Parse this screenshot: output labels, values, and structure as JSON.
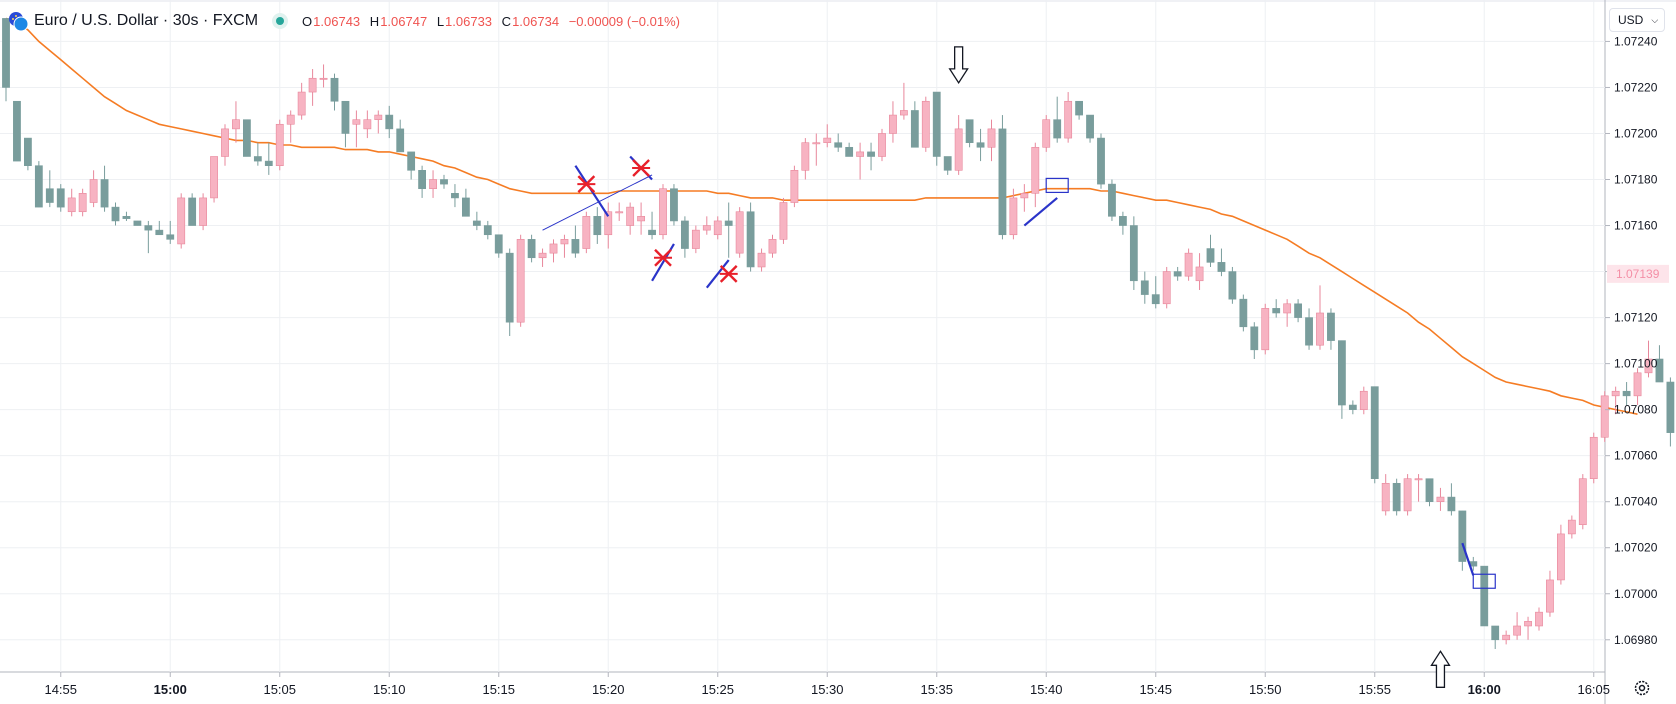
{
  "header": {
    "symbol_title": "Euro / U.S. Dollar · 30s · FXCM",
    "open_label": "O",
    "open": "1.06743",
    "high_label": "H",
    "high": "1.06747",
    "low_label": "L",
    "low": "1.06733",
    "close_label": "C",
    "close": "1.06734",
    "change": "−0.00009 (−0.01%)"
  },
  "currency_button": {
    "label": "USD"
  },
  "icons": {
    "flag": "eur-usd-flag-icon",
    "status": "market-open-dot-icon",
    "settings": "settings-gear-icon",
    "chevron": "chevron-down-icon"
  },
  "colors": {
    "up": "#f7b3c2",
    "up_border": "#e8879b",
    "down": "#799d9c",
    "ma": "#f57c24",
    "drawing": "#2a34c9",
    "marker": "#e8202a",
    "axis_text": "#131722",
    "grid": "#eef0f3"
  },
  "chart_data": {
    "type": "candlestick",
    "interval": "30s",
    "ylim": [
      1.06966,
      1.07258
    ],
    "y_ticks": [
      "1.07240",
      "1.07220",
      "1.07200",
      "1.07180",
      "1.07160",
      "1.07140",
      "1.07120",
      "1.07100",
      "1.07080",
      "1.07060",
      "1.07040",
      "1.07020",
      "1.07000",
      "1.06980"
    ],
    "y_tick_values": [
      1.0724,
      1.0722,
      1.072,
      1.0718,
      1.0716,
      1.0714,
      1.0712,
      1.071,
      1.0708,
      1.0706,
      1.0704,
      1.0702,
      1.07,
      1.0698
    ],
    "current_price_label": "1.07139",
    "current_price": 1.07139,
    "x_ticks": [
      "14:55",
      "15:00",
      "15:05",
      "15:10",
      "15:15",
      "15:20",
      "15:25",
      "15:30",
      "15:35",
      "15:40",
      "15:45",
      "15:50",
      "15:55",
      "16:00",
      "16:05"
    ],
    "x_tick_index": [
      5,
      15,
      25,
      35,
      45,
      55,
      65,
      75,
      85,
      95,
      105,
      115,
      125,
      135,
      145
    ],
    "x_tick_bold": [
      false,
      true,
      false,
      false,
      false,
      false,
      false,
      false,
      false,
      false,
      false,
      false,
      false,
      true,
      false
    ],
    "candles": [
      [
        1.0725,
        1.0725,
        1.07214,
        1.0722
      ],
      [
        1.07214,
        1.07214,
        1.07188,
        1.07188
      ],
      [
        1.07198,
        1.07198,
        1.07184,
        1.07186
      ],
      [
        1.07186,
        1.07188,
        1.07168,
        1.07168
      ],
      [
        1.07176,
        1.07184,
        1.07168,
        1.0717
      ],
      [
        1.07176,
        1.07178,
        1.07166,
        1.07168
      ],
      [
        1.07166,
        1.07176,
        1.07164,
        1.07172
      ],
      [
        1.07166,
        1.07176,
        1.07164,
        1.07174
      ],
      [
        1.0717,
        1.07184,
        1.07168,
        1.0718
      ],
      [
        1.0718,
        1.07186,
        1.07166,
        1.07168
      ],
      [
        1.07168,
        1.0717,
        1.0716,
        1.07162
      ],
      [
        1.07164,
        1.07166,
        1.07162,
        1.07163
      ],
      [
        1.07162,
        1.07162,
        1.0716,
        1.0716
      ],
      [
        1.0716,
        1.07162,
        1.07148,
        1.07158
      ],
      [
        1.07158,
        1.07162,
        1.07156,
        1.07156
      ],
      [
        1.07156,
        1.07162,
        1.07152,
        1.07154
      ],
      [
        1.07152,
        1.07174,
        1.0715,
        1.07172
      ],
      [
        1.07172,
        1.07174,
        1.0716,
        1.0716
      ],
      [
        1.0716,
        1.07174,
        1.07158,
        1.07172
      ],
      [
        1.07172,
        1.0719,
        1.0717,
        1.0719
      ],
      [
        1.0719,
        1.07204,
        1.07186,
        1.07202
      ],
      [
        1.07202,
        1.07214,
        1.07196,
        1.07206
      ],
      [
        1.07206,
        1.07206,
        1.0719,
        1.0719
      ],
      [
        1.0719,
        1.07196,
        1.07186,
        1.07188
      ],
      [
        1.07188,
        1.07196,
        1.07182,
        1.07186
      ],
      [
        1.07186,
        1.07206,
        1.07184,
        1.07204
      ],
      [
        1.07204,
        1.0721,
        1.07196,
        1.07208
      ],
      [
        1.07208,
        1.07222,
        1.07206,
        1.07218
      ],
      [
        1.07218,
        1.07228,
        1.07212,
        1.07224
      ],
      [
        1.07224,
        1.0723,
        1.0722,
        1.07224
      ],
      [
        1.07224,
        1.07226,
        1.0721,
        1.07214
      ],
      [
        1.07214,
        1.07214,
        1.07194,
        1.072
      ],
      [
        1.07204,
        1.0721,
        1.07194,
        1.07206
      ],
      [
        1.07202,
        1.0721,
        1.07198,
        1.07206
      ],
      [
        1.07206,
        1.0721,
        1.072,
        1.07208
      ],
      [
        1.07208,
        1.07212,
        1.07198,
        1.07202
      ],
      [
        1.07202,
        1.07206,
        1.07192,
        1.07192
      ],
      [
        1.07192,
        1.07192,
        1.0718,
        1.07184
      ],
      [
        1.07184,
        1.07186,
        1.07172,
        1.07176
      ],
      [
        1.07176,
        1.07184,
        1.07172,
        1.0718
      ],
      [
        1.0718,
        1.07182,
        1.07176,
        1.07178
      ],
      [
        1.07174,
        1.07178,
        1.07168,
        1.07172
      ],
      [
        1.07172,
        1.07176,
        1.07164,
        1.07164
      ],
      [
        1.07162,
        1.07166,
        1.07158,
        1.0716
      ],
      [
        1.0716,
        1.07162,
        1.07154,
        1.07156
      ],
      [
        1.07156,
        1.07156,
        1.07146,
        1.07148
      ],
      [
        1.07148,
        1.0715,
        1.07112,
        1.07118
      ],
      [
        1.07118,
        1.07156,
        1.07116,
        1.07154
      ],
      [
        1.07154,
        1.07156,
        1.07144,
        1.07146
      ],
      [
        1.07146,
        1.0715,
        1.07142,
        1.07148
      ],
      [
        1.07148,
        1.07154,
        1.07144,
        1.07152
      ],
      [
        1.07152,
        1.07156,
        1.07146,
        1.07154
      ],
      [
        1.07154,
        1.0716,
        1.07146,
        1.07148
      ],
      [
        1.0715,
        1.07166,
        1.07148,
        1.07164
      ],
      [
        1.07164,
        1.07168,
        1.07152,
        1.07156
      ],
      [
        1.07156,
        1.0717,
        1.0715,
        1.07166
      ],
      [
        1.07166,
        1.0717,
        1.07162,
        1.07166
      ],
      [
        1.0716,
        1.0717,
        1.07156,
        1.07168
      ],
      [
        1.07162,
        1.0717,
        1.07156,
        1.07164
      ],
      [
        1.07158,
        1.07166,
        1.07154,
        1.07156
      ],
      [
        1.07156,
        1.07178,
        1.07154,
        1.07176
      ],
      [
        1.07176,
        1.07178,
        1.0716,
        1.07162
      ],
      [
        1.07162,
        1.07164,
        1.07146,
        1.0715
      ],
      [
        1.0715,
        1.0716,
        1.07148,
        1.07158
      ],
      [
        1.07158,
        1.07164,
        1.07156,
        1.0716
      ],
      [
        1.07156,
        1.07164,
        1.07154,
        1.07162
      ],
      [
        1.07162,
        1.0717,
        1.07146,
        1.0716
      ],
      [
        1.07148,
        1.07168,
        1.07146,
        1.07166
      ],
      [
        1.07166,
        1.0717,
        1.0714,
        1.07142
      ],
      [
        1.07142,
        1.0715,
        1.0714,
        1.07148
      ],
      [
        1.07148,
        1.07156,
        1.07146,
        1.07154
      ],
      [
        1.07154,
        1.07172,
        1.07152,
        1.0717
      ],
      [
        1.0717,
        1.07186,
        1.07168,
        1.07184
      ],
      [
        1.07184,
        1.07198,
        1.0718,
        1.07196
      ],
      [
        1.07196,
        1.072,
        1.07186,
        1.07196
      ],
      [
        1.07196,
        1.07204,
        1.07194,
        1.07198
      ],
      [
        1.07196,
        1.072,
        1.07192,
        1.07194
      ],
      [
        1.07194,
        1.07196,
        1.0719,
        1.0719
      ],
      [
        1.0719,
        1.07196,
        1.0718,
        1.07192
      ],
      [
        1.07192,
        1.07196,
        1.07184,
        1.0719
      ],
      [
        1.0719,
        1.07202,
        1.07188,
        1.072
      ],
      [
        1.072,
        1.07214,
        1.07196,
        1.07208
      ],
      [
        1.07208,
        1.07222,
        1.07206,
        1.0721
      ],
      [
        1.0721,
        1.07214,
        1.07194,
        1.07194
      ],
      [
        1.07194,
        1.07216,
        1.07192,
        1.07214
      ],
      [
        1.07218,
        1.07218,
        1.07186,
        1.0719
      ],
      [
        1.0719,
        1.0719,
        1.07182,
        1.07184
      ],
      [
        1.07184,
        1.07208,
        1.07182,
        1.07202
      ],
      [
        1.07206,
        1.07206,
        1.07194,
        1.07196
      ],
      [
        1.07196,
        1.07202,
        1.07188,
        1.07194
      ],
      [
        1.07194,
        1.07206,
        1.07188,
        1.07202
      ],
      [
        1.07202,
        1.07208,
        1.07154,
        1.07156
      ],
      [
        1.07156,
        1.07176,
        1.07154,
        1.07172
      ],
      [
        1.07172,
        1.07178,
        1.07166,
        1.07174
      ],
      [
        1.07174,
        1.07196,
        1.07168,
        1.07194
      ],
      [
        1.07194,
        1.07208,
        1.07192,
        1.07206
      ],
      [
        1.07206,
        1.07216,
        1.07196,
        1.07198
      ],
      [
        1.07198,
        1.07218,
        1.07196,
        1.07214
      ],
      [
        1.07214,
        1.07214,
        1.07206,
        1.07208
      ],
      [
        1.07208,
        1.07208,
        1.07196,
        1.07198
      ],
      [
        1.07198,
        1.072,
        1.07176,
        1.07178
      ],
      [
        1.07178,
        1.0718,
        1.07162,
        1.07164
      ],
      [
        1.07164,
        1.07166,
        1.07156,
        1.0716
      ],
      [
        1.0716,
        1.07164,
        1.07132,
        1.07136
      ],
      [
        1.07136,
        1.0714,
        1.07126,
        1.0713
      ],
      [
        1.0713,
        1.07138,
        1.07124,
        1.07126
      ],
      [
        1.07126,
        1.07142,
        1.07124,
        1.0714
      ],
      [
        1.0714,
        1.07142,
        1.07136,
        1.07138
      ],
      [
        1.07138,
        1.0715,
        1.07136,
        1.07148
      ],
      [
        1.07136,
        1.07148,
        1.07132,
        1.07142
      ],
      [
        1.0715,
        1.07156,
        1.07142,
        1.07144
      ],
      [
        1.07144,
        1.0715,
        1.07138,
        1.0714
      ],
      [
        1.0714,
        1.07142,
        1.07126,
        1.07128
      ],
      [
        1.07128,
        1.0713,
        1.07114,
        1.07116
      ],
      [
        1.07116,
        1.07118,
        1.07102,
        1.07106
      ],
      [
        1.07106,
        1.07126,
        1.07104,
        1.07124
      ],
      [
        1.07124,
        1.07128,
        1.0712,
        1.07122
      ],
      [
        1.07122,
        1.07128,
        1.07116,
        1.07126
      ],
      [
        1.07126,
        1.07128,
        1.07118,
        1.0712
      ],
      [
        1.0712,
        1.07124,
        1.07106,
        1.07108
      ],
      [
        1.07108,
        1.07134,
        1.07106,
        1.07122
      ],
      [
        1.07122,
        1.07124,
        1.07106,
        1.0711
      ],
      [
        1.0711,
        1.0711,
        1.07076,
        1.07082
      ],
      [
        1.07082,
        1.07084,
        1.07078,
        1.0708
      ],
      [
        1.0708,
        1.0709,
        1.07078,
        1.07088
      ],
      [
        1.0709,
        1.0709,
        1.07048,
        1.0705
      ],
      [
        1.07036,
        1.07052,
        1.07034,
        1.07048
      ],
      [
        1.07048,
        1.0705,
        1.07034,
        1.07036
      ],
      [
        1.07036,
        1.07052,
        1.07034,
        1.0705
      ],
      [
        1.0705,
        1.07052,
        1.0704,
        1.0705
      ],
      [
        1.0705,
        1.0705,
        1.07038,
        1.0704
      ],
      [
        1.0704,
        1.07046,
        1.07036,
        1.07042
      ],
      [
        1.07042,
        1.07048,
        1.07034,
        1.07036
      ],
      [
        1.07036,
        1.07036,
        1.0701,
        1.07014
      ],
      [
        1.07014,
        1.07016,
        1.0701,
        1.07012
      ],
      [
        1.07012,
        1.07012,
        1.06986,
        1.06986
      ],
      [
        1.06986,
        1.06986,
        1.06976,
        1.0698
      ],
      [
        1.0698,
        1.06984,
        1.06978,
        1.06982
      ],
      [
        1.06982,
        1.06992,
        1.0698,
        1.06986
      ],
      [
        1.06986,
        1.0699,
        1.0698,
        1.06988
      ],
      [
        1.06986,
        1.06994,
        1.06984,
        1.06992
      ],
      [
        1.06992,
        1.0701,
        1.0699,
        1.07006
      ],
      [
        1.07006,
        1.0703,
        1.07004,
        1.07026
      ],
      [
        1.07026,
        1.07034,
        1.07024,
        1.07032
      ],
      [
        1.0703,
        1.07052,
        1.07028,
        1.0705
      ],
      [
        1.0705,
        1.0707,
        1.07048,
        1.07068
      ],
      [
        1.07068,
        1.07088,
        1.07066,
        1.07086
      ],
      [
        1.07086,
        1.0709,
        1.07078,
        1.07088
      ],
      [
        1.07088,
        1.07092,
        1.07082,
        1.07086
      ],
      [
        1.07086,
        1.07098,
        1.07082,
        1.07096
      ],
      [
        1.07096,
        1.0711,
        1.07094,
        1.07102
      ],
      [
        1.07102,
        1.07108,
        1.07092,
        1.07092
      ],
      [
        1.07092,
        1.07094,
        1.07064,
        1.0707
      ]
    ],
    "ma": [
      1.0725,
      1.07248,
      1.07245,
      1.0724,
      1.07236,
      1.07232,
      1.07228,
      1.07224,
      1.0722,
      1.07216,
      1.07213,
      1.0721,
      1.07208,
      1.07206,
      1.07204,
      1.07203,
      1.07202,
      1.07201,
      1.072,
      1.07199,
      1.07198,
      1.07197,
      1.07197,
      1.07196,
      1.07196,
      1.07195,
      1.07195,
      1.07194,
      1.07194,
      1.07194,
      1.07194,
      1.07193,
      1.07193,
      1.07193,
      1.07192,
      1.07192,
      1.07191,
      1.0719,
      1.07189,
      1.07188,
      1.07186,
      1.07185,
      1.07183,
      1.07181,
      1.0718,
      1.07178,
      1.07176,
      1.07175,
      1.07174,
      1.07174,
      1.07174,
      1.07174,
      1.07174,
      1.07174,
      1.07174,
      1.07174,
      1.07175,
      1.07175,
      1.07175,
      1.07175,
      1.07175,
      1.07175,
      1.07175,
      1.07175,
      1.07175,
      1.07174,
      1.07174,
      1.07173,
      1.07172,
      1.07172,
      1.07172,
      1.07171,
      1.07171,
      1.07171,
      1.07171,
      1.07171,
      1.07171,
      1.07171,
      1.07171,
      1.07171,
      1.07171,
      1.07171,
      1.07171,
      1.07171,
      1.07172,
      1.07172,
      1.07172,
      1.07172,
      1.07172,
      1.07172,
      1.07172,
      1.07172,
      1.07173,
      1.07174,
      1.07175,
      1.07176,
      1.07176,
      1.07176,
      1.07176,
      1.07176,
      1.07175,
      1.07175,
      1.07174,
      1.07173,
      1.07172,
      1.07171,
      1.07171,
      1.0717,
      1.07169,
      1.07168,
      1.07167,
      1.07165,
      1.07164,
      1.07162,
      1.0716,
      1.07158,
      1.07156,
      1.07154,
      1.07151,
      1.07148,
      1.07146,
      1.07143,
      1.0714,
      1.07137,
      1.07134,
      1.07131,
      1.07128,
      1.07125,
      1.07122,
      1.07118,
      1.07115,
      1.07111,
      1.07107,
      1.07103,
      1.071,
      1.07097,
      1.07094,
      1.07092,
      1.07091,
      1.0709,
      1.07089,
      1.07088,
      1.07086,
      1.07085,
      1.07084,
      1.07082,
      1.07081,
      1.0708,
      1.07079,
      1.07078
    ],
    "annotations": {
      "crosses_at": [
        [
          53,
          1.07178
        ],
        [
          58,
          1.07185
        ],
        [
          60,
          1.07146
        ],
        [
          66,
          1.07139
        ]
      ],
      "trend_line": [
        [
          49,
          1.07158
        ],
        [
          59,
          1.07182
        ]
      ],
      "short_lines": [
        [
          [
            52,
            1.07186
          ],
          [
            55,
            1.07164
          ]
        ],
        [
          [
            57,
            1.0719
          ],
          [
            59,
            1.0718
          ]
        ],
        [
          [
            59,
            1.07136
          ],
          [
            61,
            1.07152
          ]
        ],
        [
          [
            64,
            1.07133
          ],
          [
            66,
            1.07145
          ]
        ],
        [
          [
            93,
            1.0716
          ],
          [
            96,
            1.07172
          ]
        ],
        [
          [
            133,
            1.07022
          ],
          [
            134,
            1.07008
          ]
        ]
      ],
      "boxes_at": [
        [
          96,
          1.07177
        ],
        [
          135,
          1.07005
        ]
      ],
      "arrow_down_at": [
        87,
        1.07222
      ],
      "arrow_up_at": [
        131,
        1.06975
      ]
    }
  }
}
